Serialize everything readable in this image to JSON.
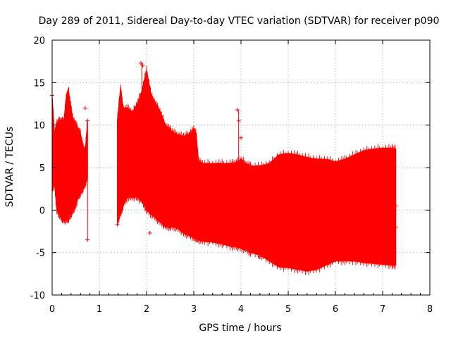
{
  "chart_data": {
    "type": "scatter",
    "style": "points-with-errorbars",
    "title": "Day 289 of 2011, Sidereal Day-to-day VTEC variation (SDTVAR) for receiver p090",
    "xlabel": "GPS time / hours",
    "ylabel": "SDTVAR / TECUs",
    "xlim": [
      0,
      8
    ],
    "ylim": [
      -10,
      20
    ],
    "xticks": [
      0,
      1,
      2,
      3,
      4,
      5,
      6,
      7,
      8
    ],
    "yticks": [
      -10,
      -5,
      0,
      5,
      10,
      15,
      20
    ],
    "grid": true,
    "legend": "none",
    "series_color": "#ff0000",
    "envelope": {
      "x": [
        0.0,
        0.05,
        0.1,
        0.15,
        0.2,
        0.25,
        0.3,
        0.35,
        0.4,
        0.45,
        0.5,
        0.55,
        0.6,
        0.65,
        0.7,
        0.75
      ],
      "upper": [
        13.5,
        9.0,
        10.2,
        10.5,
        10.5,
        10.5,
        13.5,
        14.0,
        12.0,
        10.5,
        10.2,
        9.5,
        9.0,
        7.5,
        7.0,
        10.5
      ],
      "lower": [
        2.5,
        3.0,
        0.0,
        -0.5,
        -1.0,
        -1.2,
        -1.2,
        -1.0,
        -0.5,
        0.0,
        0.5,
        1.5,
        2.0,
        2.5,
        3.0,
        4.0
      ]
    },
    "envelope2": {
      "x": [
        1.38,
        1.45,
        1.5,
        1.6,
        1.7,
        1.8,
        1.9,
        2.0,
        2.1,
        2.2,
        2.3,
        2.4,
        2.5,
        2.6,
        2.7,
        2.8,
        2.9,
        3.0,
        3.05,
        3.1,
        3.2,
        3.4,
        3.6,
        3.8,
        3.9,
        4.0,
        4.1,
        4.2,
        4.4,
        4.6,
        4.8,
        5.0,
        5.2,
        5.4,
        5.6,
        5.8,
        6.0,
        6.2,
        6.4,
        6.6,
        6.8,
        7.0,
        7.2,
        7.28
      ],
      "upper": [
        10.5,
        14.5,
        12.0,
        12.0,
        11.5,
        12.5,
        14.0,
        16.5,
        13.5,
        12.5,
        11.5,
        10.0,
        9.5,
        9.0,
        8.8,
        8.7,
        9.0,
        9.5,
        9.0,
        5.8,
        5.5,
        5.5,
        5.5,
        5.5,
        5.6,
        6.0,
        5.5,
        5.2,
        5.2,
        5.5,
        6.5,
        6.7,
        6.5,
        6.2,
        6.0,
        6.0,
        5.7,
        6.0,
        6.5,
        7.0,
        7.2,
        7.3,
        7.3,
        7.2
      ],
      "lower": [
        -1.5,
        -0.5,
        0.5,
        1.5,
        1.5,
        1.5,
        1.0,
        0.0,
        -0.5,
        -1.0,
        -1.5,
        -2.0,
        -2.0,
        -2.0,
        -2.3,
        -2.8,
        -3.0,
        -3.2,
        -3.3,
        -3.5,
        -3.7,
        -3.8,
        -4.0,
        -4.3,
        -4.3,
        -4.5,
        -4.7,
        -5.0,
        -5.3,
        -6.0,
        -6.7,
        -6.8,
        -7.0,
        -7.2,
        -7.0,
        -6.5,
        -6.0,
        -6.0,
        -6.0,
        -6.2,
        -6.3,
        -6.4,
        -6.5,
        -6.5
      ]
    },
    "outliers": [
      {
        "x": 0.0,
        "y": 13.5
      },
      {
        "x": 0.7,
        "y": 12.0
      },
      {
        "x": 0.75,
        "y": 10.5
      },
      {
        "x": 0.75,
        "y": -3.5
      },
      {
        "x": 1.38,
        "y": -1.7
      },
      {
        "x": 1.88,
        "y": 17.3
      },
      {
        "x": 1.92,
        "y": 17.0
      },
      {
        "x": 1.9,
        "y": 13.2
      },
      {
        "x": 2.07,
        "y": -2.7
      },
      {
        "x": 3.92,
        "y": 11.8
      },
      {
        "x": 3.95,
        "y": 10.5
      },
      {
        "x": 4.0,
        "y": 8.5
      },
      {
        "x": 4.4,
        "y": -5.5
      },
      {
        "x": 7.28,
        "y": 0.5
      },
      {
        "x": 7.28,
        "y": -2.0
      }
    ]
  }
}
